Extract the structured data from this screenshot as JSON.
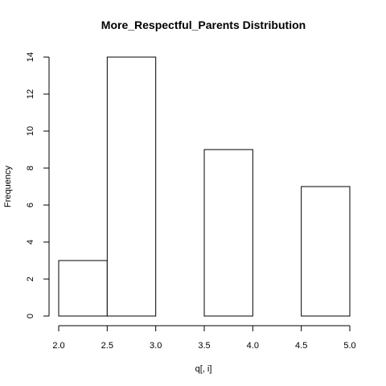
{
  "chart_data": {
    "type": "bar",
    "title": "More_Respectful_Parents Distribution",
    "xlabel": "q[, i]",
    "ylabel": "Frequency",
    "bins": [
      {
        "start": 2.0,
        "end": 2.5,
        "count": 3
      },
      {
        "start": 2.5,
        "end": 3.0,
        "count": 14
      },
      {
        "start": 3.0,
        "end": 3.5,
        "count": 0
      },
      {
        "start": 3.5,
        "end": 4.0,
        "count": 9
      },
      {
        "start": 4.0,
        "end": 4.5,
        "count": 0
      },
      {
        "start": 4.5,
        "end": 5.0,
        "count": 7
      }
    ],
    "xlim": [
      2.0,
      5.0
    ],
    "ylim": [
      0,
      14
    ],
    "x_ticks": [
      "2.0",
      "2.5",
      "3.0",
      "3.5",
      "4.0",
      "4.5",
      "5.0"
    ],
    "y_ticks": [
      "0",
      "2",
      "4",
      "6",
      "8",
      "10",
      "12",
      "14"
    ],
    "grid": false,
    "bar_fill": "#ffffff",
    "bar_stroke": "#000000"
  }
}
